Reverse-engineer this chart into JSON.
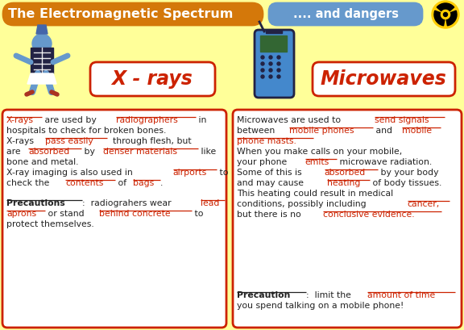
{
  "bg_color": "#FFFF99",
  "header_left_color": "#D4780A",
  "header_right_color": "#6699CC",
  "header_left_text": "The Electromagnetic Spectrum",
  "header_right_text": ".... and dangers",
  "xray_title": "X - rays",
  "microwave_title": "Microwaves",
  "title_color": "#CC2200",
  "box_border_color": "#CC2200",
  "text_black": "#222222",
  "text_red": "#CC2200",
  "figsize": [
    5.76,
    4.09
  ],
  "dpi": 100,
  "xray_lines": [
    [
      {
        "t": "X-rays",
        "s": "ru"
      },
      {
        "t": " are used by ",
        "s": "n"
      },
      {
        "t": "radiographers",
        "s": "ru"
      },
      {
        "t": " in",
        "s": "n"
      }
    ],
    [
      {
        "t": "hospitals to check for broken bones.",
        "s": "n"
      }
    ],
    [
      {
        "t": "X-rays ",
        "s": "n"
      },
      {
        "t": "pass easily",
        "s": "ru"
      },
      {
        "t": "  through flesh, but",
        "s": "n"
      }
    ],
    [
      {
        "t": "are ",
        "s": "n"
      },
      {
        "t": "absorbed",
        "s": "ru"
      },
      {
        "t": " by ",
        "s": "n"
      },
      {
        "t": "denser materials",
        "s": "ru"
      },
      {
        "t": " like",
        "s": "n"
      }
    ],
    [
      {
        "t": "bone and metal.",
        "s": "n"
      }
    ],
    [
      {
        "t": "X-ray imaging is also used in ",
        "s": "n"
      },
      {
        "t": "airports",
        "s": "ru"
      },
      {
        "t": " to",
        "s": "n"
      }
    ],
    [
      {
        "t": "check the ",
        "s": "n"
      },
      {
        "t": "contents",
        "s": "ru"
      },
      {
        "t": " of ",
        "s": "n"
      },
      {
        "t": "bags",
        "s": "ru"
      },
      {
        "t": ".",
        "s": "n"
      }
    ]
  ],
  "xray_prec_lines": [
    [
      {
        "t": "Precautions",
        "s": "bu"
      },
      {
        "t": ":  radiograhers wear ",
        "s": "n"
      },
      {
        "t": "lead",
        "s": "ru"
      }
    ],
    [
      {
        "t": "aprons",
        "s": "ru"
      },
      {
        "t": " or stand ",
        "s": "n"
      },
      {
        "t": "behind concrete",
        "s": "ru"
      },
      {
        "t": " to",
        "s": "n"
      }
    ],
    [
      {
        "t": "protect themselves.",
        "s": "n"
      }
    ]
  ],
  "micro_lines": [
    [
      {
        "t": "Microwaves are used to ",
        "s": "n"
      },
      {
        "t": "send signals",
        "s": "ru"
      }
    ],
    [
      {
        "t": "between ",
        "s": "n"
      },
      {
        "t": "mobile phones",
        "s": "ru"
      },
      {
        "t": " and ",
        "s": "n"
      },
      {
        "t": "mobile",
        "s": "ru"
      }
    ],
    [
      {
        "t": "phone masts.",
        "s": "ru"
      }
    ],
    [
      {
        "t": "When you make calls on your mobile,",
        "s": "n"
      }
    ],
    [
      {
        "t": "your phone ",
        "s": "n"
      },
      {
        "t": "emits",
        "s": "ru"
      },
      {
        "t": " microwave radiation.",
        "s": "n"
      }
    ],
    [
      {
        "t": "Some of this is ",
        "s": "n"
      },
      {
        "t": "absorbed",
        "s": "ru"
      },
      {
        "t": " by your body",
        "s": "n"
      }
    ],
    [
      {
        "t": "and may cause ",
        "s": "n"
      },
      {
        "t": "heating",
        "s": "ru"
      },
      {
        "t": " of body tissues.",
        "s": "n"
      }
    ],
    [
      {
        "t": "This heating could result in medical",
        "s": "n"
      }
    ],
    [
      {
        "t": "conditions, possibly including ",
        "s": "n"
      },
      {
        "t": "cancer,",
        "s": "ru"
      }
    ],
    [
      {
        "t": "but there is no ",
        "s": "n"
      },
      {
        "t": "conclusive evidence.",
        "s": "ru"
      }
    ]
  ],
  "micro_prec_lines": [
    [
      {
        "t": "Precaution",
        "s": "bu"
      },
      {
        "t": ":  limit the ",
        "s": "n"
      },
      {
        "t": "amount of time",
        "s": "ru"
      }
    ],
    [
      {
        "t": "you spend talking on a mobile phone!",
        "s": "n"
      }
    ]
  ]
}
